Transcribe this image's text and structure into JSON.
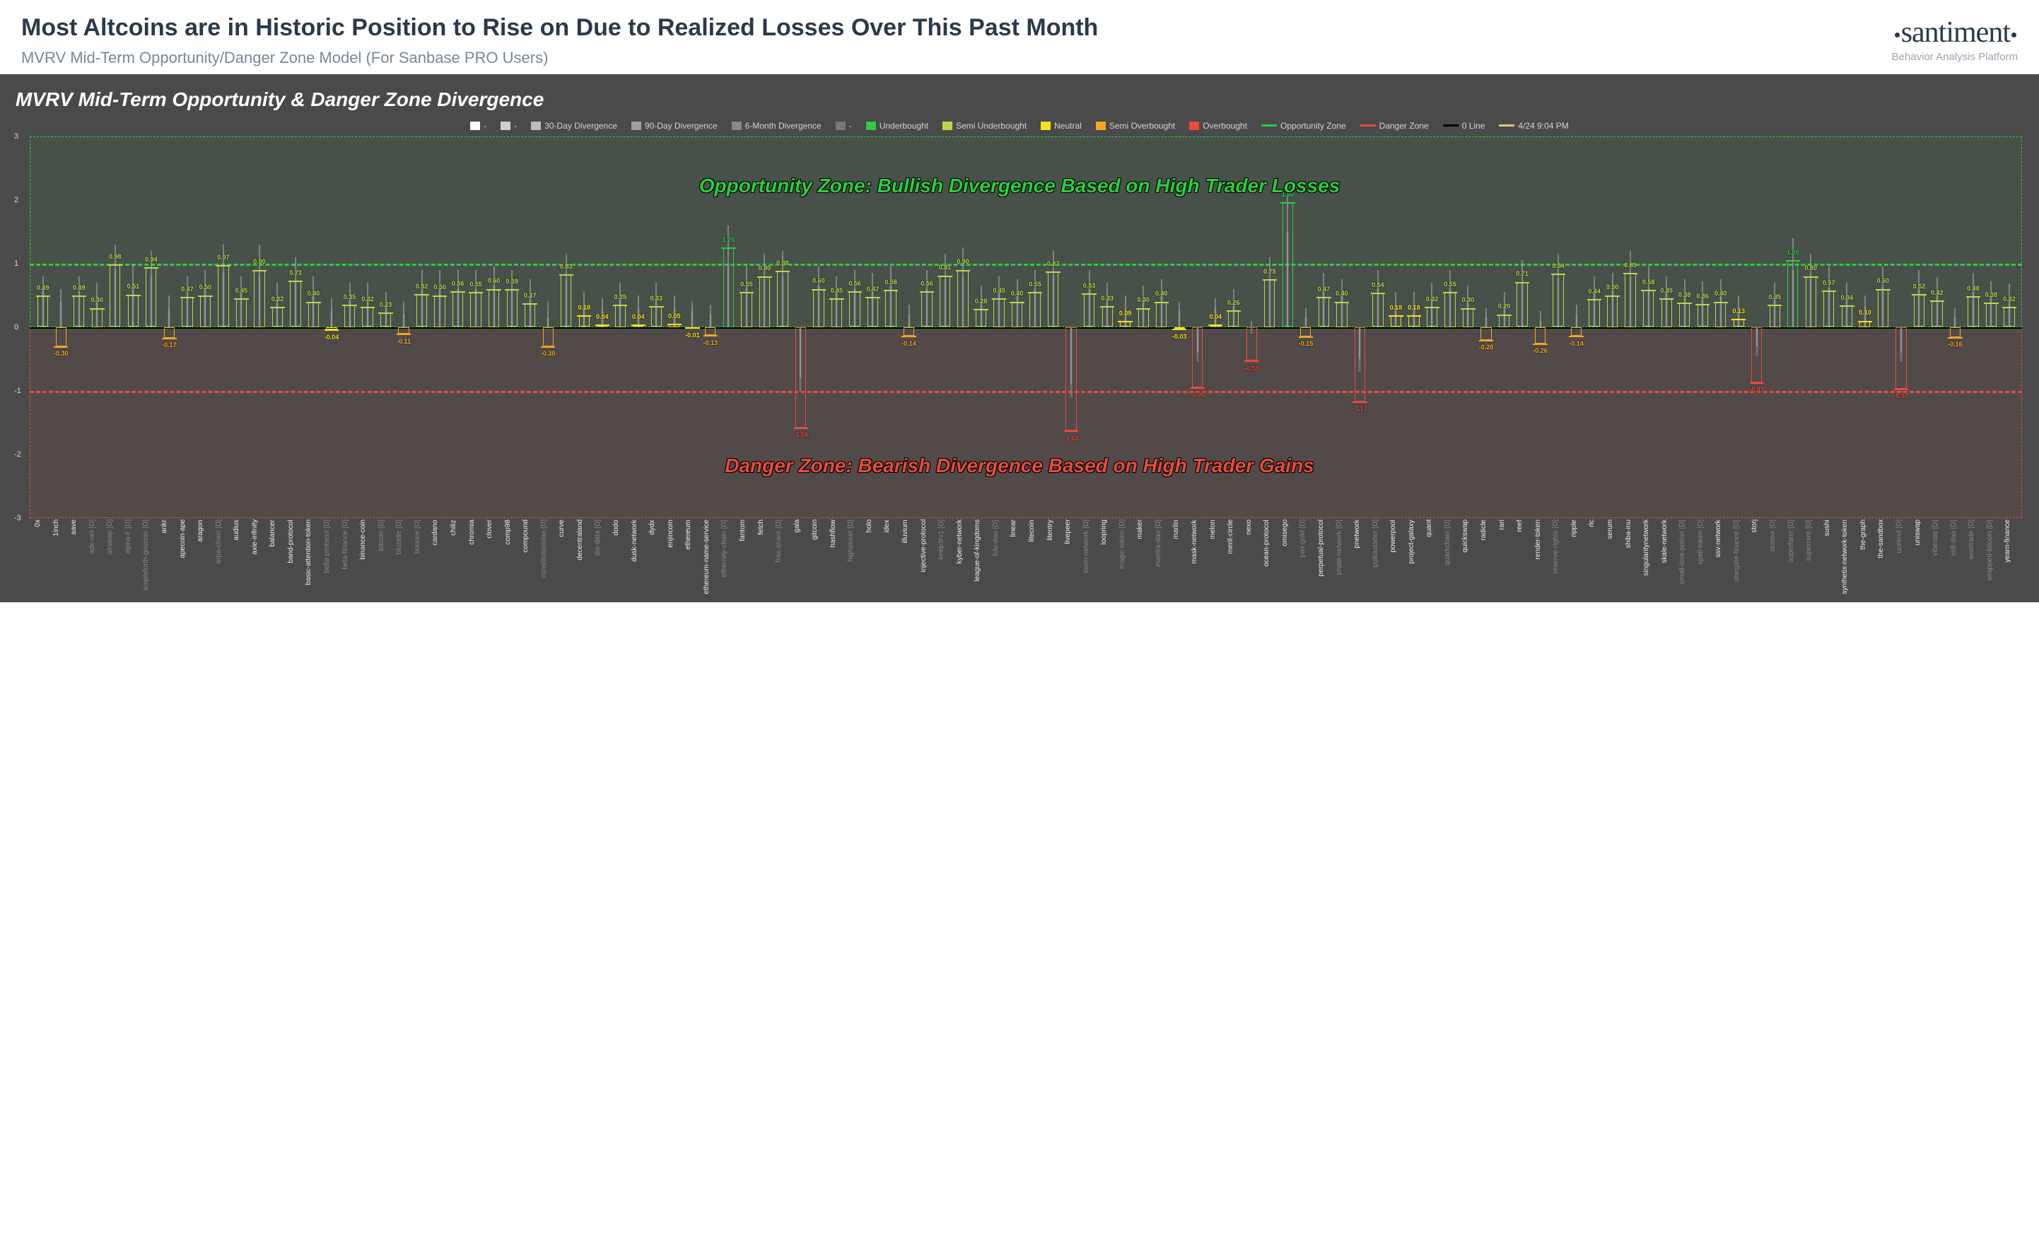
{
  "header": {
    "title": "Most Altcoins are in Historic Position to Rise on Due to Realized Losses Over This Past Month",
    "subtitle": "MVRV Mid-Term Opportunity/Danger Zone Model (For Sanbase PRO Users)",
    "brand_name": "santiment",
    "brand_sub": "Behavior Analysis Platform"
  },
  "chart": {
    "title": "MVRV Mid-Term Opportunity & Danger Zone Divergence",
    "timestamp": "4/24 9:04 PM",
    "ylim": [
      -3,
      3
    ],
    "yticks": [
      -3,
      -2,
      -1,
      0,
      1,
      2,
      3
    ],
    "opportunity_line": 1,
    "danger_line": -1,
    "colors": {
      "bg": "#4a4a4a",
      "underbought": "#2ecc40",
      "semi_underbought": "#b8d84a",
      "neutral": "#f7e11b",
      "semi_overbought": "#f5a623",
      "overbought": "#e74c3c",
      "opp_zone": "#2ecc40",
      "dang_zone": "#e74c3c",
      "d30_fill": "#bfbfbf",
      "d90_fill": "#a0a0a0",
      "d6m_fill": "#888888",
      "zero": "#000000"
    },
    "legend": [
      {
        "label": "-",
        "swatch": "#ffffff",
        "type": "box"
      },
      {
        "label": "-",
        "swatch": "#cfcfcf",
        "type": "box"
      },
      {
        "label": "30-Day Divergence",
        "swatch": "#bfbfbf",
        "type": "box"
      },
      {
        "label": "90-Day Divergence",
        "swatch": "#a0a0a0",
        "type": "box"
      },
      {
        "label": "6-Month Divergence",
        "swatch": "#888888",
        "type": "box"
      },
      {
        "label": "-",
        "swatch": "#777777",
        "type": "box"
      },
      {
        "label": "Underbought",
        "swatch": "#2ecc40",
        "type": "box"
      },
      {
        "label": "Semi Underbought",
        "swatch": "#b8d84a",
        "type": "box"
      },
      {
        "label": "Neutral",
        "swatch": "#f7e11b",
        "type": "box"
      },
      {
        "label": "Semi Overbought",
        "swatch": "#f5a623",
        "type": "box"
      },
      {
        "label": "Overbought",
        "swatch": "#e74c3c",
        "type": "box"
      },
      {
        "label": "Opportunity Zone",
        "swatch": "#2ecc40",
        "type": "line"
      },
      {
        "label": "Danger Zone",
        "swatch": "#e74c3c",
        "type": "line"
      },
      {
        "label": "0 Line",
        "swatch": "#000000",
        "type": "line"
      },
      {
        "label": "4/24 9:04 PM",
        "swatch": "#d9c97a",
        "type": "line"
      }
    ],
    "zone_text_opp": "Opportunity Zone: Bullish Divergence Based on High Trader Losses",
    "zone_text_dang": "Danger Zone: Bearish Divergence Based on High Trader Gains",
    "data": [
      {
        "name": "0x",
        "d30": 0.49,
        "d90": 0.8,
        "d6m": 0.6,
        "dim": false
      },
      {
        "name": "1inch",
        "d30": -0.3,
        "d90": 0.6,
        "d6m": 0.4,
        "dim": false
      },
      {
        "name": "aave",
        "d30": 0.49,
        "d90": 0.8,
        "d6m": 0.55,
        "dim": false
      },
      {
        "name": "adx-net [D]",
        "d30": 0.3,
        "d90": 0.7,
        "d6m": 0.5,
        "dim": true
      },
      {
        "name": "airswap [D]",
        "d30": 0.98,
        "d90": 1.3,
        "d6m": 0.9,
        "dim": true
      },
      {
        "name": "alpha-f. [D]",
        "d30": 0.51,
        "d90": 1.0,
        "d6m": 0.7,
        "dim": true
      },
      {
        "name": "ampleforth-govcoin [D]",
        "d30": 0.94,
        "d90": 1.2,
        "d6m": 0.8,
        "dim": true
      },
      {
        "name": "ankr",
        "d30": -0.17,
        "d90": 0.5,
        "d6m": 0.3,
        "dim": false
      },
      {
        "name": "apecoin-ape",
        "d30": 0.47,
        "d90": 0.8,
        "d6m": 0.55,
        "dim": false
      },
      {
        "name": "aragon",
        "d30": 0.5,
        "d90": 0.9,
        "d6m": 0.6,
        "dim": false
      },
      {
        "name": "arpa-chain [D]",
        "d30": 0.97,
        "d90": 1.3,
        "d6m": 0.85,
        "dim": true
      },
      {
        "name": "audius",
        "d30": 0.45,
        "d90": 0.8,
        "d6m": 0.55,
        "dim": false
      },
      {
        "name": "axie-infinity",
        "d30": 0.9,
        "d90": 1.3,
        "d6m": 0.8,
        "dim": false
      },
      {
        "name": "balancer",
        "d30": 0.32,
        "d90": 0.7,
        "d6m": 0.45,
        "dim": false
      },
      {
        "name": "band-protocol",
        "d30": 0.73,
        "d90": 1.1,
        "d6m": 0.7,
        "dim": false
      },
      {
        "name": "basic-attention-token",
        "d30": 0.4,
        "d90": 0.8,
        "d6m": 0.5,
        "dim": false
      },
      {
        "name": "bella-protocol [D]",
        "d30": -0.04,
        "d90": 0.45,
        "d6m": 0.25,
        "dim": true
      },
      {
        "name": "beta-finance [D]",
        "d30": 0.35,
        "d90": 0.7,
        "d6m": 0.45,
        "dim": true
      },
      {
        "name": "binance-coin",
        "d30": 0.32,
        "d90": 0.7,
        "d6m": 0.45,
        "dim": false
      },
      {
        "name": "bitcoin [D]",
        "d30": 0.23,
        "d90": 0.55,
        "d6m": 0.35,
        "dim": true
      },
      {
        "name": "bluzelle [D]",
        "d30": -0.11,
        "d90": 0.4,
        "d6m": 0.2,
        "dim": true
      },
      {
        "name": "bounce [D]",
        "d30": 0.52,
        "d90": 0.9,
        "d6m": 0.6,
        "dim": true
      },
      {
        "name": "cardano",
        "d30": 0.5,
        "d90": 0.9,
        "d6m": 0.6,
        "dim": false
      },
      {
        "name": "chiliz",
        "d30": 0.56,
        "d90": 0.9,
        "d6m": 0.6,
        "dim": false
      },
      {
        "name": "chromia",
        "d30": 0.55,
        "d90": 0.9,
        "d6m": 0.6,
        "dim": false
      },
      {
        "name": "clover",
        "d30": 0.6,
        "d90": 0.95,
        "d6m": 0.65,
        "dim": false
      },
      {
        "name": "comp98",
        "d30": 0.59,
        "d90": 0.9,
        "d6m": 0.6,
        "dim": false
      },
      {
        "name": "compound",
        "d30": 0.37,
        "d90": 0.75,
        "d6m": 0.5,
        "dim": false
      },
      {
        "name": "constitutiondao [D]",
        "d30": -0.3,
        "d90": 0.4,
        "d6m": 0.15,
        "dim": true
      },
      {
        "name": "curve",
        "d30": 0.83,
        "d90": 1.15,
        "d6m": 0.75,
        "dim": false
      },
      {
        "name": "decentraland",
        "d30": 0.18,
        "d90": 0.55,
        "d6m": 0.35,
        "dim": false
      },
      {
        "name": "dia-data [D]",
        "d30": 0.04,
        "d90": 0.45,
        "d6m": 0.25,
        "dim": true
      },
      {
        "name": "dodo",
        "d30": 0.35,
        "d90": 0.7,
        "d6m": 0.45,
        "dim": false
      },
      {
        "name": "dusk-network",
        "d30": 0.04,
        "d90": 0.5,
        "d6m": 0.3,
        "dim": false
      },
      {
        "name": "dydx",
        "d30": 0.33,
        "d90": 0.7,
        "d6m": 0.45,
        "dim": false
      },
      {
        "name": "enjincoin",
        "d30": 0.05,
        "d90": 0.5,
        "d6m": 0.3,
        "dim": false
      },
      {
        "name": "ethereum",
        "d30": -0.01,
        "d90": 0.4,
        "d6m": 0.25,
        "dim": false
      },
      {
        "name": "ethereum-name-service",
        "d30": -0.13,
        "d90": 0.35,
        "d6m": 0.2,
        "dim": false
      },
      {
        "name": "ethernity-chain [D]",
        "d30": 1.25,
        "d90": 1.6,
        "d6m": 1.0,
        "dim": true
      },
      {
        "name": "fantom",
        "d30": 0.55,
        "d90": 0.95,
        "d6m": 0.65,
        "dim": false
      },
      {
        "name": "fetch",
        "d30": 0.8,
        "d90": 1.15,
        "d6m": 0.75,
        "dim": false
      },
      {
        "name": "frax-share [D]",
        "d30": 0.88,
        "d90": 1.2,
        "d6m": 0.8,
        "dim": true
      },
      {
        "name": "gala",
        "d30": -1.58,
        "d90": -0.8,
        "d6m": -1.0,
        "dim": false
      },
      {
        "name": "gitcoin",
        "d30": 0.6,
        "d90": 0.95,
        "d6m": 0.65,
        "dim": false
      },
      {
        "name": "hashflow",
        "d30": 0.45,
        "d90": 0.8,
        "d6m": 0.55,
        "dim": false
      },
      {
        "name": "highstreet [D]",
        "d30": 0.56,
        "d90": 0.9,
        "d6m": 0.6,
        "dim": true
      },
      {
        "name": "holo",
        "d30": 0.47,
        "d90": 0.85,
        "d6m": 0.55,
        "dim": false
      },
      {
        "name": "idex",
        "d30": 0.58,
        "d90": 0.95,
        "d6m": 0.65,
        "dim": false
      },
      {
        "name": "illuvium",
        "d30": -0.14,
        "d90": 0.35,
        "d6m": 0.2,
        "dim": false
      },
      {
        "name": "injective-protocol",
        "d30": 0.56,
        "d90": 0.9,
        "d6m": 0.6,
        "dim": false
      },
      {
        "name": "keep3rv1 [D]",
        "d30": 0.81,
        "d90": 1.15,
        "d6m": 0.75,
        "dim": true
      },
      {
        "name": "kyber-network",
        "d30": 0.9,
        "d90": 1.25,
        "d6m": 0.8,
        "dim": false
      },
      {
        "name": "league-of-kingdoms",
        "d30": 0.28,
        "d90": 0.65,
        "d6m": 0.45,
        "dim": false
      },
      {
        "name": "lido-dao [D]",
        "d30": 0.45,
        "d90": 0.8,
        "d6m": 0.55,
        "dim": true
      },
      {
        "name": "linear",
        "d30": 0.4,
        "d90": 0.75,
        "d6m": 0.5,
        "dim": false
      },
      {
        "name": "litecoin",
        "d30": 0.55,
        "d90": 0.9,
        "d6m": 0.6,
        "dim": false
      },
      {
        "name": "litentry",
        "d30": 0.87,
        "d90": 1.2,
        "d6m": 0.8,
        "dim": false
      },
      {
        "name": "livepeer",
        "d30": -1.63,
        "d90": -0.9,
        "d6m": -1.1,
        "dim": false
      },
      {
        "name": "loom-network [D]",
        "d30": 0.53,
        "d90": 0.9,
        "d6m": 0.6,
        "dim": true
      },
      {
        "name": "loopring",
        "d30": 0.33,
        "d90": 0.7,
        "d6m": 0.45,
        "dim": false
      },
      {
        "name": "magic-token [D]",
        "d30": 0.09,
        "d90": 0.5,
        "d6m": 0.3,
        "dim": true
      },
      {
        "name": "maker",
        "d30": 0.3,
        "d90": 0.65,
        "d6m": 0.45,
        "dim": false
      },
      {
        "name": "mantra-dao [D]",
        "d30": 0.4,
        "d90": 0.75,
        "d6m": 0.5,
        "dim": true
      },
      {
        "name": "marlin",
        "d30": -0.03,
        "d90": 0.4,
        "d6m": 0.25,
        "dim": false
      },
      {
        "name": "mask-network",
        "d30": -0.95,
        "d90": -0.4,
        "d6m": -0.55,
        "dim": false
      },
      {
        "name": "melon",
        "d30": 0.04,
        "d90": 0.45,
        "d6m": 0.28,
        "dim": false
      },
      {
        "name": "merit-circle",
        "d30": 0.26,
        "d90": 0.6,
        "d6m": 0.4,
        "dim": false
      },
      {
        "name": "nexo",
        "d30": -0.53,
        "d90": 0.1,
        "d6m": -0.1,
        "dim": false
      },
      {
        "name": "ocean-protocol",
        "d30": 0.75,
        "d90": 1.1,
        "d6m": 0.72,
        "dim": false
      },
      {
        "name": "omisego",
        "d30": 1.96,
        "d90": 2.3,
        "d6m": 1.5,
        "dim": false
      },
      {
        "name": "pax-gold [D]",
        "d30": -0.15,
        "d90": 0.3,
        "d6m": 0.15,
        "dim": true
      },
      {
        "name": "perpetual-protocol",
        "d30": 0.47,
        "d90": 0.85,
        "d6m": 0.55,
        "dim": false
      },
      {
        "name": "phala-network [D]",
        "d30": 0.4,
        "d90": 0.75,
        "d6m": 0.5,
        "dim": true
      },
      {
        "name": "pnetwork",
        "d30": -1.17,
        "d90": -0.5,
        "d6m": -0.7,
        "dim": false
      },
      {
        "name": "polkastarter [D]",
        "d30": 0.54,
        "d90": 0.9,
        "d6m": 0.6,
        "dim": true
      },
      {
        "name": "powerpool",
        "d30": 0.18,
        "d90": 0.55,
        "d6m": 0.35,
        "dim": false
      },
      {
        "name": "project-galaxy",
        "d30": 0.18,
        "d90": 0.55,
        "d6m": 0.35,
        "dim": false
      },
      {
        "name": "quant",
        "d30": 0.32,
        "d90": 0.7,
        "d6m": 0.45,
        "dim": false
      },
      {
        "name": "quarkchain [D]",
        "d30": 0.55,
        "d90": 0.9,
        "d6m": 0.6,
        "dim": true
      },
      {
        "name": "quickswap",
        "d30": 0.3,
        "d90": 0.65,
        "d6m": 0.45,
        "dim": false
      },
      {
        "name": "radicle",
        "d30": -0.2,
        "d90": 0.3,
        "d6m": 0.15,
        "dim": false
      },
      {
        "name": "rari",
        "d30": 0.2,
        "d90": 0.55,
        "d6m": 0.35,
        "dim": false
      },
      {
        "name": "reef",
        "d30": 0.71,
        "d90": 1.05,
        "d6m": 0.68,
        "dim": false
      },
      {
        "name": "render-token",
        "d30": -0.26,
        "d90": 0.25,
        "d6m": 0.1,
        "dim": false
      },
      {
        "name": "reserve-rights [D]",
        "d30": 0.84,
        "d90": 1.15,
        "d6m": 0.75,
        "dim": true
      },
      {
        "name": "ripple",
        "d30": -0.14,
        "d90": 0.35,
        "d6m": 0.2,
        "dim": false
      },
      {
        "name": "rlc",
        "d30": 0.44,
        "d90": 0.8,
        "d6m": 0.55,
        "dim": false
      },
      {
        "name": "serum",
        "d30": 0.5,
        "d90": 0.85,
        "d6m": 0.58,
        "dim": false
      },
      {
        "name": "shiba-inu",
        "d30": 0.85,
        "d90": 1.2,
        "d6m": 0.8,
        "dim": false
      },
      {
        "name": "singularitynetwork",
        "d30": 0.58,
        "d90": 0.95,
        "d6m": 0.62,
        "dim": false
      },
      {
        "name": "skale-network",
        "d30": 0.45,
        "d90": 0.8,
        "d6m": 0.55,
        "dim": false
      },
      {
        "name": "small-love-potion [D]",
        "d30": 0.38,
        "d90": 0.75,
        "d6m": 0.5,
        "dim": true
      },
      {
        "name": "spell-token [D]",
        "d30": 0.36,
        "d90": 0.72,
        "d6m": 0.48,
        "dim": true
      },
      {
        "name": "ssv-network",
        "d30": 0.4,
        "d90": 0.75,
        "d6m": 0.5,
        "dim": false
      },
      {
        "name": "stargate-finance [D]",
        "d30": 0.13,
        "d90": 0.5,
        "d6m": 0.32,
        "dim": true
      },
      {
        "name": "storj",
        "d30": -0.87,
        "d90": -0.3,
        "d6m": -0.45,
        "dim": false
      },
      {
        "name": "stormx [D]",
        "d30": 0.35,
        "d90": 0.7,
        "d6m": 0.48,
        "dim": true
      },
      {
        "name": "superfarm [D]",
        "d30": 1.05,
        "d90": 1.4,
        "d6m": 0.9,
        "dim": true
      },
      {
        "name": "superrare [D]",
        "d30": 0.8,
        "d90": 1.15,
        "d6m": 0.75,
        "dim": true
      },
      {
        "name": "sushi",
        "d30": 0.57,
        "d90": 0.95,
        "d6m": 0.62,
        "dim": false
      },
      {
        "name": "synthetix-network-token",
        "d30": 0.34,
        "d90": 0.7,
        "d6m": 0.48,
        "dim": false
      },
      {
        "name": "the-graph",
        "d30": 0.1,
        "d90": 0.5,
        "d6m": 0.32,
        "dim": false
      },
      {
        "name": "the-sandbox",
        "d30": 0.6,
        "d90": 0.95,
        "d6m": 0.62,
        "dim": false
      },
      {
        "name": "unilend [D]",
        "d30": -0.97,
        "d90": -0.4,
        "d6m": -0.55,
        "dim": true
      },
      {
        "name": "uniswap",
        "d30": 0.52,
        "d90": 0.9,
        "d6m": 0.6,
        "dim": false
      },
      {
        "name": "viberate [D]",
        "d30": 0.42,
        "d90": 0.78,
        "d6m": 0.52,
        "dim": true
      },
      {
        "name": "vidt-dao [D]",
        "d30": -0.16,
        "d90": 0.3,
        "d6m": 0.15,
        "dim": true
      },
      {
        "name": "wootrade [D]",
        "d30": 0.48,
        "d90": 0.85,
        "d6m": 0.55,
        "dim": true
      },
      {
        "name": "wrapped-bitcoin [D]",
        "d30": 0.38,
        "d90": 0.72,
        "d6m": 0.48,
        "dim": true
      },
      {
        "name": "yearn-finance",
        "d30": 0.32,
        "d90": 0.68,
        "d6m": 0.45,
        "dim": false
      }
    ]
  }
}
